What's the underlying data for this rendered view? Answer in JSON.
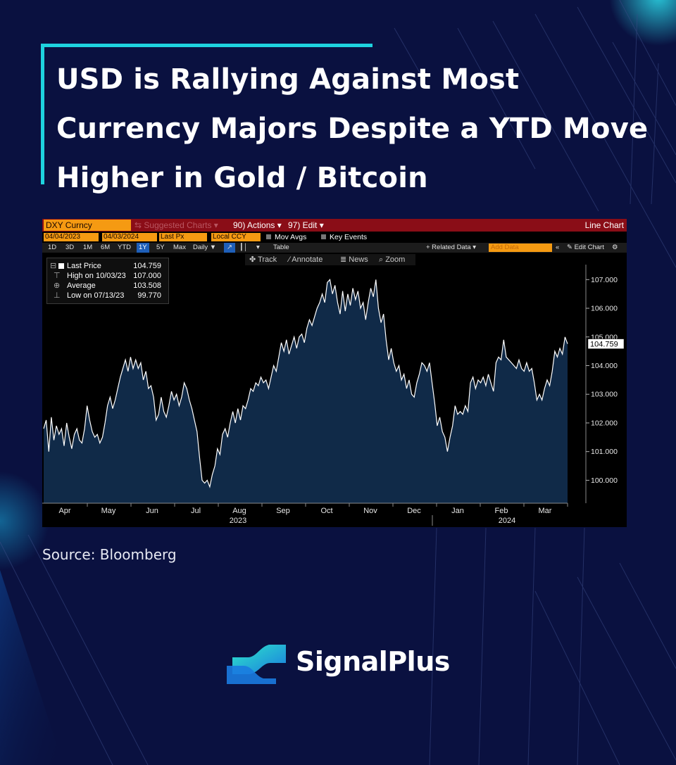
{
  "headline": "USD is Rallying Against Most Currency Majors Despite a YTD Move Higher in Gold / Bitcoin",
  "source": "Source:  Bloomberg",
  "brand": "SignalPlus",
  "colors": {
    "background": "#0a1140",
    "accent": "#1ed3df",
    "bloomberg_orange": "#f59a12",
    "bloomberg_red": "#8a0d17",
    "line": "#ffffff",
    "area": "#102a48"
  },
  "terminal": {
    "ticker": "DXY Curncy",
    "suggested_charts": "⇆ Suggested Charts ▾",
    "actions": "90) Actions ▾",
    "edit": "97) Edit ▾",
    "chart_kind": "Line Chart",
    "start_date": "04/04/2023",
    "end_date": "04/03/2024",
    "field": "Last Px",
    "currency": "Local CCY",
    "mov_avgs": "Mov Avgs",
    "key_events": "Key Events",
    "periods": [
      "1D",
      "3D",
      "1M",
      "6M",
      "YTD",
      "1Y",
      "5Y",
      "Max"
    ],
    "active_period": "1Y",
    "frequency": "Daily ▼",
    "table": "Table",
    "related_data": "+ Related Data ▾",
    "add_data": "Add Data",
    "edit_chart": "✎ Edit Chart",
    "tools": [
      "✤ Track",
      "∕ Annotate",
      "≣ News",
      "⌕ Zoom"
    ]
  },
  "legend": [
    {
      "label": "Last Price",
      "value": "104.759"
    },
    {
      "label": "High on 10/03/23",
      "value": "107.000"
    },
    {
      "label": "Average",
      "value": "103.508"
    },
    {
      "label": "Low on 07/13/23",
      "value": "99.770"
    }
  ],
  "chart_data": {
    "type": "area",
    "title": "",
    "xlabel": "",
    "ylabel": "",
    "series": [
      {
        "name": "Last Price",
        "values": [
          101.8,
          102.1,
          101.0,
          102.2,
          101.4,
          101.9,
          101.6,
          101.8,
          101.2,
          102.0,
          101.5,
          101.1,
          101.6,
          101.8,
          101.4,
          101.3,
          101.8,
          102.6,
          102.1,
          101.7,
          101.5,
          101.6,
          101.3,
          101.5,
          102.0,
          102.6,
          102.9,
          102.5,
          102.8,
          103.2,
          103.6,
          103.9,
          104.2,
          103.8,
          104.3,
          103.9,
          104.2,
          103.9,
          104.1,
          103.5,
          103.8,
          103.2,
          103.3,
          102.9,
          102.1,
          102.3,
          102.9,
          102.4,
          102.2,
          102.6,
          103.1,
          102.8,
          103.0,
          102.6,
          102.9,
          103.4,
          103.2,
          102.8,
          102.5,
          102.1,
          101.7,
          100.8,
          100.0,
          99.9,
          100.0,
          99.77,
          100.2,
          100.5,
          101.1,
          100.9,
          101.6,
          101.8,
          101.5,
          102.0,
          102.4,
          102.0,
          102.5,
          102.1,
          102.6,
          102.5,
          102.8,
          103.2,
          103.1,
          103.4,
          103.3,
          103.6,
          103.4,
          103.5,
          103.2,
          103.6,
          104.0,
          103.8,
          104.3,
          104.8,
          104.5,
          104.9,
          104.4,
          104.7,
          105.0,
          104.6,
          105.0,
          105.1,
          104.8,
          105.3,
          105.6,
          105.4,
          105.7,
          106.0,
          106.2,
          106.5,
          106.2,
          106.9,
          107.0,
          106.5,
          106.8,
          106.2,
          105.8,
          106.6,
          105.9,
          106.5,
          106.1,
          106.7,
          106.3,
          106.6,
          106.0,
          106.2,
          105.6,
          106.2,
          106.7,
          106.4,
          107.0,
          106.0,
          105.5,
          105.8,
          104.9,
          104.2,
          104.6,
          104.1,
          103.8,
          104.0,
          103.5,
          103.7,
          103.2,
          103.5,
          103.0,
          102.9,
          103.4,
          103.7,
          104.1,
          104.0,
          103.8,
          104.1,
          103.4,
          102.7,
          101.9,
          102.2,
          101.7,
          101.5,
          101.0,
          101.5,
          101.9,
          102.6,
          102.3,
          102.4,
          102.3,
          102.6,
          102.4,
          103.4,
          103.6,
          103.2,
          103.5,
          103.4,
          103.6,
          103.3,
          103.7,
          103.4,
          103.1,
          104.1,
          104.3,
          104.2,
          104.9,
          104.3,
          104.2,
          104.1,
          104.0,
          103.9,
          104.2,
          103.9,
          103.8,
          104.1,
          103.8,
          103.9,
          103.4,
          102.8,
          103.0,
          102.8,
          103.2,
          103.5,
          103.3,
          103.8,
          104.5,
          104.3,
          104.6,
          104.4,
          105.0,
          104.759
        ]
      }
    ],
    "x_ticks": [
      "Apr",
      "May",
      "Jun",
      "Jul",
      "Aug",
      "Sep",
      "Oct",
      "Nov",
      "Dec",
      "Jan",
      "Feb",
      "Mar"
    ],
    "year_labels": [
      "2023",
      "2024"
    ],
    "y_ticks": [
      "100.000",
      "101.000",
      "102.000",
      "103.000",
      "104.000",
      "105.000",
      "106.000",
      "107.000"
    ],
    "ylim": [
      99.2,
      107.4
    ],
    "last_value_label": "104.759",
    "grid": false,
    "legend_position": "top-left"
  }
}
